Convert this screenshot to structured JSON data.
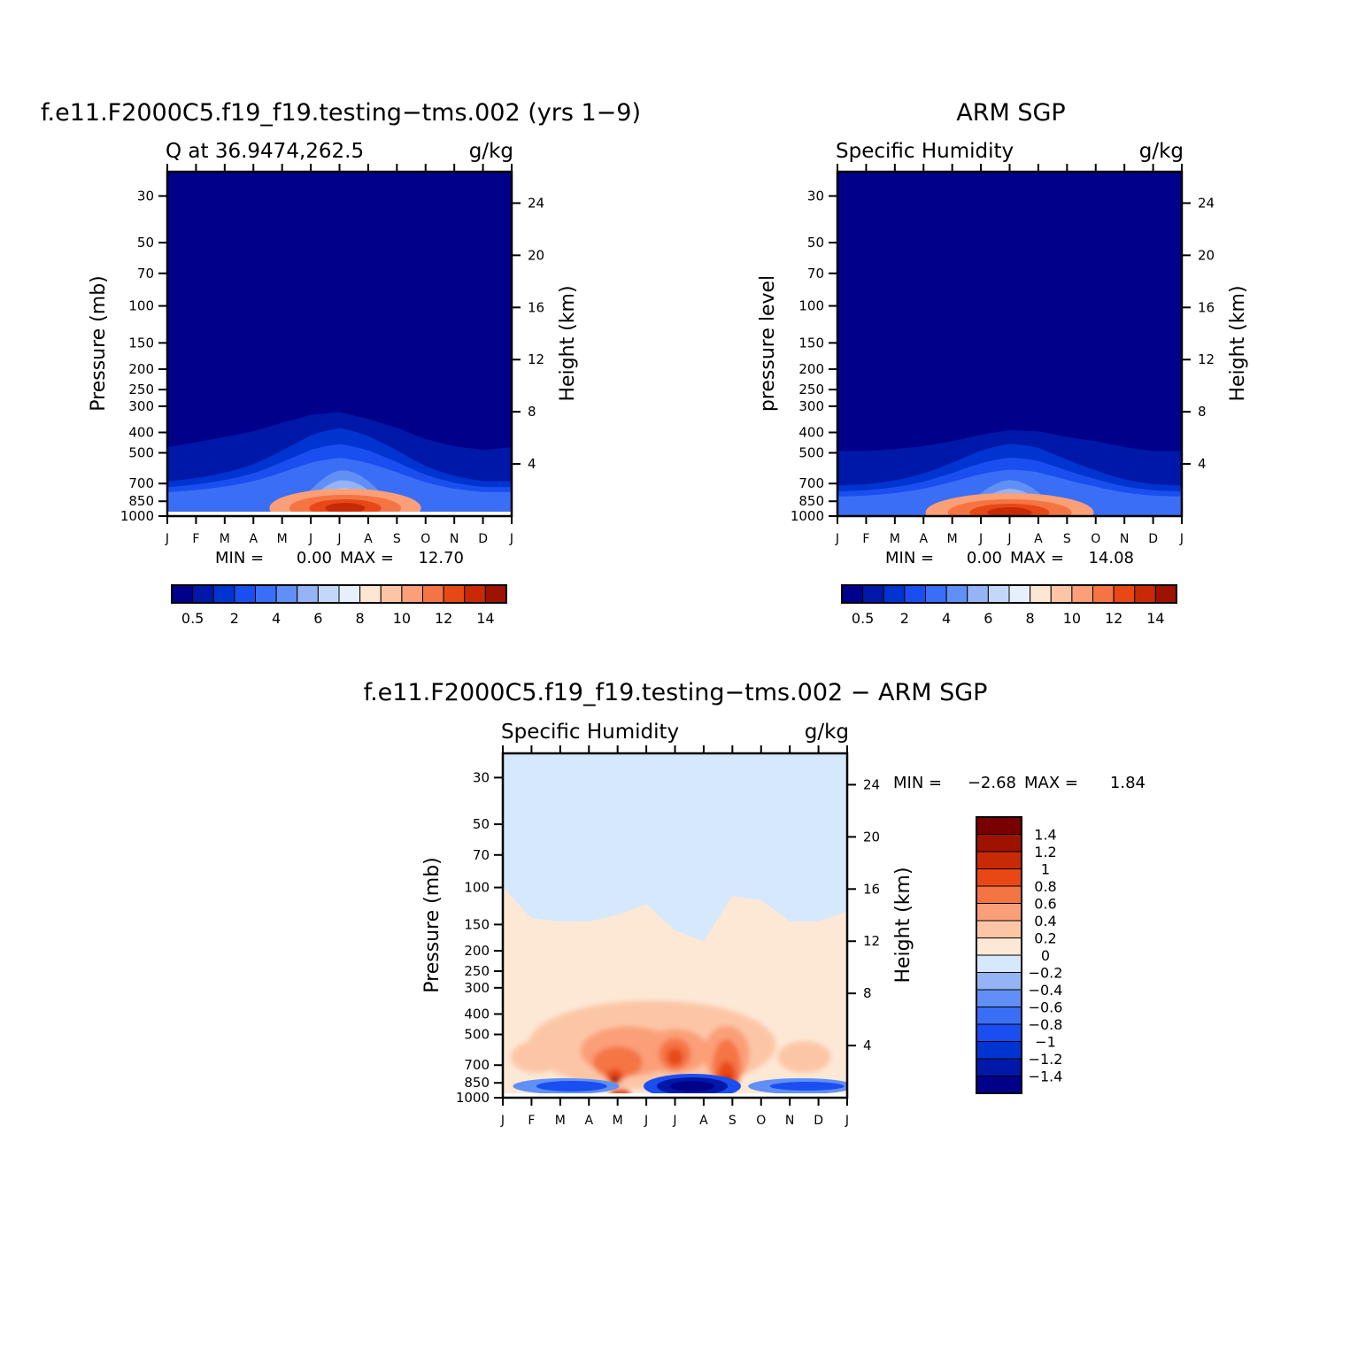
{
  "colors": {
    "abs_palette": [
      "#00008b",
      "#0018a8",
      "#0034d0",
      "#1a4ef0",
      "#3a6ef5",
      "#6090f5",
      "#94b4f6",
      "#c2d8fa",
      "#e6f0fc",
      "#fde6d2",
      "#fcc6a6",
      "#fb9f78",
      "#f57444",
      "#e84816",
      "#c82a06",
      "#9e1200",
      "#780000"
    ],
    "diff_palette": [
      "#00008b",
      "#0018a8",
      "#0034d0",
      "#1a4ef0",
      "#3a6ef5",
      "#6090f5",
      "#94b4f6",
      "#d6e8fb",
      "#fde8d6",
      "#fcc6a6",
      "#fb9f78",
      "#f57444",
      "#e84816",
      "#c82a06",
      "#9e1200",
      "#780000"
    ]
  },
  "chart_data": [
    {
      "id": "model",
      "type": "heatmap",
      "title": "f.e11.F2000C5.f19_f19.testing−tms.002 (yrs 1−9)",
      "left_label": "Q at 36.9474,262.5",
      "units": "g/kg",
      "ylabel": "Pressure (mb)",
      "y2label": "Height (km)",
      "months": [
        "J",
        "F",
        "M",
        "A",
        "M",
        "J",
        "J",
        "A",
        "S",
        "O",
        "N",
        "D",
        "J"
      ],
      "pressure_ticks": [
        "30",
        "50",
        "70",
        "100",
        "150",
        "200",
        "250",
        "300",
        "400",
        "500",
        "700",
        "850",
        "1000"
      ],
      "height_ticks": [
        "24",
        "20",
        "16",
        "12",
        "8",
        "4"
      ],
      "stats": {
        "min_label": "MIN =",
        "min": "0.00",
        "max_label": "MAX =",
        "max": "12.70"
      },
      "levels": [
        "0.5",
        "2",
        "4",
        "6",
        "8",
        "10",
        "12",
        "14"
      ],
      "peak": 12.7,
      "peak_month": 6.2,
      "moist_top_hpa": [
        470,
        445,
        420,
        395,
        360,
        330,
        320,
        345,
        380,
        430,
        465,
        485,
        470
      ]
    },
    {
      "id": "obs",
      "type": "heatmap",
      "title": "ARM SGP",
      "left_label": "Specific Humidity",
      "units": "g/kg",
      "ylabel": "pressure level",
      "y2label": "Height (km)",
      "months": [
        "J",
        "F",
        "M",
        "A",
        "M",
        "J",
        "J",
        "A",
        "S",
        "O",
        "N",
        "D",
        "J"
      ],
      "pressure_ticks": [
        "30",
        "50",
        "70",
        "100",
        "150",
        "200",
        "250",
        "300",
        "400",
        "500",
        "700",
        "850",
        "1000"
      ],
      "height_ticks": [
        "24",
        "20",
        "16",
        "12",
        "8",
        "4"
      ],
      "stats": {
        "min_label": "MIN =",
        "min": "0.00",
        "max_label": "MAX =",
        "max": "14.08"
      },
      "levels": [
        "0.5",
        "2",
        "4",
        "6",
        "8",
        "10",
        "12",
        "14"
      ],
      "peak": 14.08,
      "peak_month": 6.0,
      "moist_top_hpa": [
        490,
        490,
        480,
        465,
        440,
        410,
        390,
        395,
        420,
        440,
        470,
        490,
        490
      ]
    },
    {
      "id": "diff",
      "type": "heatmap",
      "title": "f.e11.F2000C5.f19_f19.testing−tms.002 − ARM SGP",
      "left_label": "Specific Humidity",
      "units": "g/kg",
      "ylabel": "Pressure (mb)",
      "y2label": "Height (km)",
      "months": [
        "J",
        "F",
        "M",
        "A",
        "M",
        "J",
        "J",
        "A",
        "S",
        "O",
        "N",
        "D",
        "J"
      ],
      "pressure_ticks": [
        "30",
        "50",
        "70",
        "100",
        "150",
        "200",
        "250",
        "300",
        "400",
        "500",
        "700",
        "850",
        "1000"
      ],
      "height_ticks": [
        "24",
        "20",
        "16",
        "12",
        "8",
        "4"
      ],
      "stats": {
        "min_label": "MIN =",
        "min": "−2.68",
        "max_label": "MAX =",
        "max": "1.84"
      },
      "levels": [
        "1.4",
        "1.2",
        "1",
        "0.8",
        "0.6",
        "0.4",
        "0.2",
        "0",
        "−0.2",
        "−0.4",
        "−0.6",
        "−0.8",
        "−1",
        "−1.2",
        "−1.4"
      ],
      "boundary_hpa": [
        100,
        140,
        145,
        145,
        135,
        120,
        160,
        180,
        110,
        115,
        145,
        145,
        130
      ]
    }
  ]
}
